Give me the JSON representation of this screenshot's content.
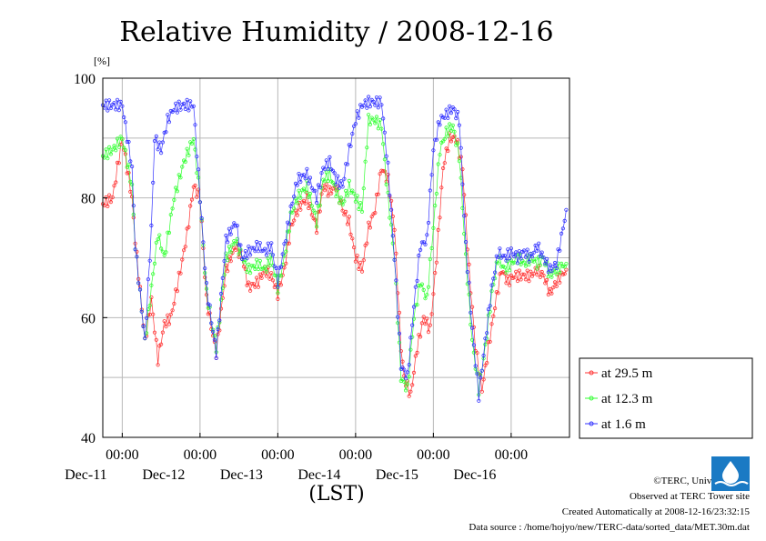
{
  "chart_data": {
    "type": "line",
    "title": "Relative Humidity / 2008-12-16",
    "ylabel": "[%]",
    "xlabel": "(LST)",
    "ylim": [
      40,
      100
    ],
    "xlim": [
      0,
      144
    ],
    "x_unit": "hours from 2008-12-10 18:00",
    "yticks": [
      40,
      60,
      80,
      100
    ],
    "xticks": [
      {
        "x": 6,
        "time": "00:00",
        "date": "Dec-11"
      },
      {
        "x": 30,
        "time": "00:00",
        "date": "Dec-12"
      },
      {
        "x": 54,
        "time": "00:00",
        "date": "Dec-13"
      },
      {
        "x": 78,
        "time": "00:00",
        "date": "Dec-14"
      },
      {
        "x": 102,
        "time": "00:00",
        "date": "Dec-15"
      },
      {
        "x": 126,
        "time": "00:00",
        "date": "Dec-16"
      }
    ],
    "grid": true,
    "legend_position": "right-bottom",
    "series": [
      {
        "name": "at 29.5 m",
        "color": "#ff3333",
        "points": [
          [
            0,
            79
          ],
          [
            3,
            80
          ],
          [
            6,
            90
          ],
          [
            9,
            80
          ],
          [
            10,
            73
          ],
          [
            13,
            56
          ],
          [
            15,
            63
          ],
          [
            17,
            53
          ],
          [
            19,
            59
          ],
          [
            21,
            60
          ],
          [
            24,
            68
          ],
          [
            26,
            74
          ],
          [
            28,
            82
          ],
          [
            30,
            80
          ],
          [
            32,
            63
          ],
          [
            35,
            54
          ],
          [
            38,
            68
          ],
          [
            41,
            72
          ],
          [
            43,
            70
          ],
          [
            45,
            65
          ],
          [
            48,
            66
          ],
          [
            50,
            68
          ],
          [
            52,
            67
          ],
          [
            54,
            64
          ],
          [
            56,
            68
          ],
          [
            58,
            75
          ],
          [
            60,
            78
          ],
          [
            63,
            80
          ],
          [
            66,
            75
          ],
          [
            68,
            82
          ],
          [
            70,
            81
          ],
          [
            72,
            82
          ],
          [
            74,
            78
          ],
          [
            76,
            76
          ],
          [
            78,
            70
          ],
          [
            80,
            68
          ],
          [
            82,
            75
          ],
          [
            84,
            78
          ],
          [
            86,
            85
          ],
          [
            88,
            83
          ],
          [
            90,
            75
          ],
          [
            92,
            55
          ],
          [
            93,
            50
          ],
          [
            95,
            47
          ],
          [
            97,
            55
          ],
          [
            99,
            60
          ],
          [
            101,
            58
          ],
          [
            103,
            70
          ],
          [
            105,
            85
          ],
          [
            107,
            90
          ],
          [
            109,
            90
          ],
          [
            111,
            85
          ],
          [
            113,
            68
          ],
          [
            115,
            55
          ],
          [
            117,
            48
          ],
          [
            119,
            55
          ],
          [
            121,
            62
          ],
          [
            123,
            68
          ],
          [
            125,
            66
          ],
          [
            127,
            67
          ],
          [
            129,
            67
          ],
          [
            131,
            67
          ],
          [
            132,
            67
          ],
          [
            134,
            68
          ],
          [
            136,
            67
          ],
          [
            138,
            64
          ],
          [
            140,
            66
          ],
          [
            143,
            68
          ]
        ]
      },
      {
        "name": "at 12.3 m",
        "color": "#33ff33",
        "points": [
          [
            0,
            87
          ],
          [
            3,
            88
          ],
          [
            6,
            90
          ],
          [
            9,
            82
          ],
          [
            10,
            72
          ],
          [
            13,
            56
          ],
          [
            15,
            65
          ],
          [
            17,
            74
          ],
          [
            19,
            70
          ],
          [
            22,
            80
          ],
          [
            25,
            86
          ],
          [
            28,
            90
          ],
          [
            30,
            80
          ],
          [
            32,
            64
          ],
          [
            35,
            55
          ],
          [
            38,
            70
          ],
          [
            41,
            73
          ],
          [
            43,
            70
          ],
          [
            45,
            68
          ],
          [
            48,
            69
          ],
          [
            50,
            68
          ],
          [
            52,
            70
          ],
          [
            54,
            65
          ],
          [
            56,
            70
          ],
          [
            58,
            77
          ],
          [
            60,
            80
          ],
          [
            63,
            82
          ],
          [
            66,
            76
          ],
          [
            68,
            83
          ],
          [
            70,
            84
          ],
          [
            72,
            81
          ],
          [
            74,
            79
          ],
          [
            76,
            82
          ],
          [
            78,
            80
          ],
          [
            80,
            78
          ],
          [
            82,
            93
          ],
          [
            84,
            93
          ],
          [
            86,
            92
          ],
          [
            88,
            80
          ],
          [
            90,
            70
          ],
          [
            92,
            50
          ],
          [
            94,
            48
          ],
          [
            96,
            60
          ],
          [
            98,
            66
          ],
          [
            100,
            63
          ],
          [
            102,
            75
          ],
          [
            104,
            88
          ],
          [
            106,
            91
          ],
          [
            108,
            92
          ],
          [
            110,
            87
          ],
          [
            112,
            70
          ],
          [
            114,
            56
          ],
          [
            116,
            48
          ],
          [
            118,
            55
          ],
          [
            120,
            64
          ],
          [
            122,
            70
          ],
          [
            124,
            68
          ],
          [
            126,
            69
          ],
          [
            128,
            70
          ],
          [
            130,
            69
          ],
          [
            132,
            70
          ],
          [
            134,
            69
          ],
          [
            136,
            70
          ],
          [
            138,
            67
          ],
          [
            140,
            68
          ],
          [
            143,
            69
          ]
        ]
      },
      {
        "name": "at 1.6 m",
        "color": "#3333ff",
        "points": [
          [
            0,
            95.5
          ],
          [
            3,
            95.5
          ],
          [
            6,
            95.5
          ],
          [
            9,
            85
          ],
          [
            10,
            72
          ],
          [
            13,
            56
          ],
          [
            15,
            75
          ],
          [
            16,
            90
          ],
          [
            18,
            88
          ],
          [
            20,
            93
          ],
          [
            22,
            95
          ],
          [
            25,
            95.5
          ],
          [
            28,
            95.5
          ],
          [
            30,
            80
          ],
          [
            32,
            65
          ],
          [
            35,
            54
          ],
          [
            38,
            73
          ],
          [
            41,
            76
          ],
          [
            43,
            70
          ],
          [
            45,
            71
          ],
          [
            48,
            72
          ],
          [
            50,
            71
          ],
          [
            52,
            72
          ],
          [
            54,
            66
          ],
          [
            56,
            72
          ],
          [
            58,
            78
          ],
          [
            60,
            83
          ],
          [
            63,
            84
          ],
          [
            66,
            80
          ],
          [
            68,
            85
          ],
          [
            70,
            86
          ],
          [
            72,
            83
          ],
          [
            74,
            82
          ],
          [
            76,
            88
          ],
          [
            78,
            93
          ],
          [
            80,
            95.5
          ],
          [
            82,
            96
          ],
          [
            84,
            96
          ],
          [
            86,
            96
          ],
          [
            88,
            85
          ],
          [
            90,
            70
          ],
          [
            92,
            52
          ],
          [
            94,
            50
          ],
          [
            96,
            62
          ],
          [
            98,
            72
          ],
          [
            100,
            73
          ],
          [
            102,
            88
          ],
          [
            104,
            93
          ],
          [
            106,
            94
          ],
          [
            108,
            95
          ],
          [
            110,
            93
          ],
          [
            112,
            72
          ],
          [
            114,
            58
          ],
          [
            116,
            47
          ],
          [
            118,
            56
          ],
          [
            120,
            65
          ],
          [
            122,
            71
          ],
          [
            124,
            70
          ],
          [
            126,
            71
          ],
          [
            128,
            70
          ],
          [
            130,
            71
          ],
          [
            132,
            70
          ],
          [
            134,
            72
          ],
          [
            136,
            70
          ],
          [
            138,
            68
          ],
          [
            140,
            69
          ],
          [
            143,
            78
          ]
        ]
      }
    ]
  },
  "credits": {
    "copyright": "©TERC, Univ. Tsukuba",
    "observed": "Observed at TERC Tower site",
    "created": "Created Automatically at 2008-12-16/23:32:15",
    "source": "Data source : /home/hojyo/new/TERC-data/sorted_data/MET.30m.dat"
  },
  "logo": {
    "label": "TERC",
    "color": "#1a7ac4"
  }
}
